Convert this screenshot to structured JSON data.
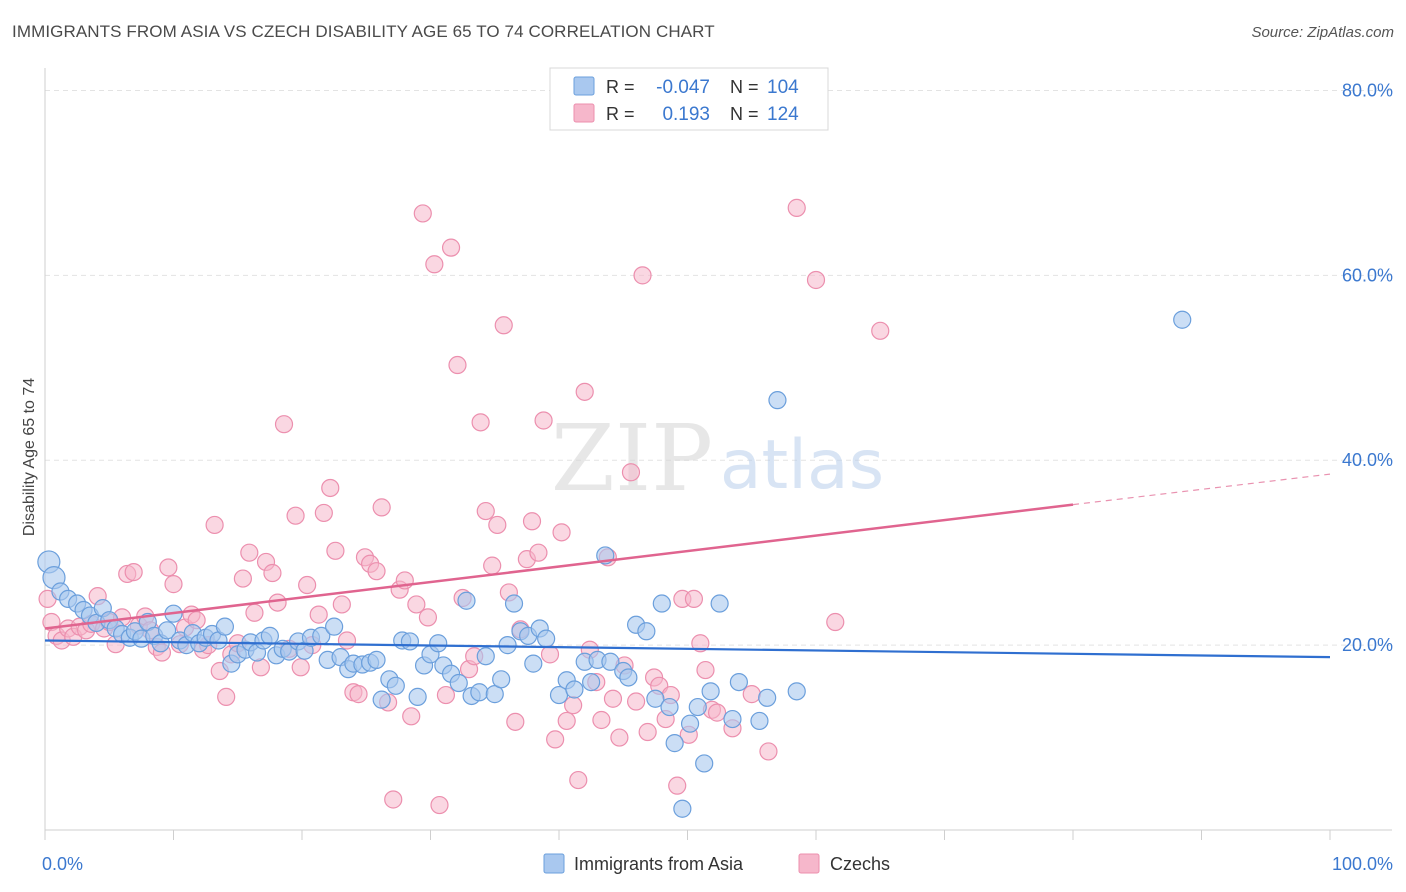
{
  "header": {
    "title": "IMMIGRANTS FROM ASIA VS CZECH DISABILITY AGE 65 TO 74 CORRELATION CHART",
    "source": "Source: ZipAtlas.com"
  },
  "watermark": {
    "zip": "ZIP",
    "atlas": "atlas"
  },
  "legend_top": {
    "rows": [
      {
        "r_label": "R =",
        "r_value": "-0.047",
        "n_label": "N =",
        "n_value": "104"
      },
      {
        "r_label": "R =",
        "r_value": "0.193",
        "n_label": "N =",
        "n_value": "124"
      }
    ]
  },
  "legend_bottom": {
    "items": [
      "Immigrants from Asia",
      "Czechs"
    ]
  },
  "colors": {
    "asia_fill": "#a9c8ef",
    "asia_stroke": "#6b9fdc",
    "asia_line": "#2f6fd0",
    "czech_fill": "#f6b7cb",
    "czech_stroke": "#ec8fae",
    "czech_line": "#e0648f",
    "tick_label": "#3b78cf",
    "grid": "#e3e3e3"
  },
  "chart_data": {
    "type": "scatter",
    "title": "IMMIGRANTS FROM ASIA VS CZECH DISABILITY AGE 65 TO 74 CORRELATION CHART",
    "xlabel": "",
    "ylabel": "Disability Age 65 to 74",
    "xlim": [
      0,
      100
    ],
    "ylim": [
      0,
      82
    ],
    "x_tick_labels": [
      "0.0%",
      "100.0%"
    ],
    "y_ticks": [
      20,
      40,
      60,
      80
    ],
    "y_tick_labels": [
      "20.0%",
      "40.0%",
      "60.0%",
      "80.0%"
    ],
    "grid": true,
    "legend_position": "top-center",
    "series": [
      {
        "name": "Immigrants from Asia",
        "r": -0.047,
        "n": 104,
        "trend": {
          "x0": 0,
          "y0": 20.5,
          "x1": 100,
          "y1": 18.7
        },
        "points": [
          [
            0.3,
            29.0
          ],
          [
            0.7,
            27.3
          ],
          [
            1.2,
            25.8
          ],
          [
            1.8,
            25.0
          ],
          [
            2.5,
            24.5
          ],
          [
            3.0,
            23.8
          ],
          [
            3.5,
            23.2
          ],
          [
            4.0,
            22.4
          ],
          [
            4.5,
            24.0
          ],
          [
            5.0,
            22.7
          ],
          [
            5.5,
            21.8
          ],
          [
            6.0,
            21.2
          ],
          [
            6.6,
            20.8
          ],
          [
            7.0,
            21.5
          ],
          [
            7.5,
            20.7
          ],
          [
            8.0,
            22.5
          ],
          [
            8.5,
            21.0
          ],
          [
            9.0,
            20.2
          ],
          [
            9.5,
            21.6
          ],
          [
            10.0,
            23.4
          ],
          [
            10.5,
            20.5
          ],
          [
            11.0,
            20.0
          ],
          [
            11.5,
            21.3
          ],
          [
            12.0,
            20.2
          ],
          [
            12.5,
            20.8
          ],
          [
            13.0,
            21.2
          ],
          [
            13.5,
            20.5
          ],
          [
            14.0,
            22.0
          ],
          [
            14.5,
            18.0
          ],
          [
            15.0,
            19.0
          ],
          [
            15.6,
            19.5
          ],
          [
            16.0,
            20.3
          ],
          [
            16.5,
            19.2
          ],
          [
            17.0,
            20.5
          ],
          [
            17.5,
            21.0
          ],
          [
            18.0,
            18.9
          ],
          [
            18.5,
            19.6
          ],
          [
            19.0,
            19.3
          ],
          [
            19.7,
            20.4
          ],
          [
            20.2,
            19.4
          ],
          [
            20.7,
            20.8
          ],
          [
            21.5,
            21.0
          ],
          [
            22.0,
            18.4
          ],
          [
            22.5,
            22.0
          ],
          [
            23.0,
            18.7
          ],
          [
            23.6,
            17.4
          ],
          [
            24.0,
            18.0
          ],
          [
            24.7,
            17.9
          ],
          [
            25.3,
            18.1
          ],
          [
            25.8,
            18.4
          ],
          [
            26.2,
            14.1
          ],
          [
            26.8,
            16.3
          ],
          [
            27.3,
            15.6
          ],
          [
            27.8,
            20.5
          ],
          [
            28.4,
            20.4
          ],
          [
            29.0,
            14.4
          ],
          [
            29.5,
            17.8
          ],
          [
            30.0,
            19.0
          ],
          [
            30.6,
            20.2
          ],
          [
            31.0,
            17.8
          ],
          [
            31.6,
            16.9
          ],
          [
            32.2,
            15.9
          ],
          [
            32.8,
            24.8
          ],
          [
            33.2,
            14.5
          ],
          [
            33.8,
            14.9
          ],
          [
            34.3,
            18.8
          ],
          [
            35.0,
            14.7
          ],
          [
            35.5,
            16.3
          ],
          [
            36.0,
            20.0
          ],
          [
            36.5,
            24.5
          ],
          [
            37.0,
            21.5
          ],
          [
            37.6,
            21.0
          ],
          [
            38.0,
            18.0
          ],
          [
            38.5,
            21.8
          ],
          [
            39.0,
            20.7
          ],
          [
            40.0,
            14.6
          ],
          [
            40.6,
            16.2
          ],
          [
            41.2,
            15.2
          ],
          [
            42.0,
            18.2
          ],
          [
            42.5,
            16.0
          ],
          [
            43.0,
            18.4
          ],
          [
            43.6,
            29.7
          ],
          [
            44.0,
            18.2
          ],
          [
            45.0,
            17.2
          ],
          [
            45.4,
            16.5
          ],
          [
            46.0,
            22.2
          ],
          [
            46.8,
            21.5
          ],
          [
            47.5,
            14.2
          ],
          [
            48.0,
            24.5
          ],
          [
            48.6,
            13.3
          ],
          [
            49.0,
            9.4
          ],
          [
            49.6,
            2.3
          ],
          [
            50.2,
            11.5
          ],
          [
            50.8,
            13.3
          ],
          [
            51.3,
            7.2
          ],
          [
            51.8,
            15.0
          ],
          [
            52.5,
            24.5
          ],
          [
            53.5,
            12.0
          ],
          [
            54.0,
            16.0
          ],
          [
            55.6,
            11.8
          ],
          [
            56.2,
            14.3
          ],
          [
            57.0,
            46.5
          ],
          [
            58.5,
            15.0
          ],
          [
            88.5,
            55.2
          ]
        ]
      },
      {
        "name": "Czechs",
        "r": 0.193,
        "n": 124,
        "trend": {
          "x0": 0,
          "y0": 21.8,
          "x1": 80,
          "y1": 35.2,
          "dashed_to_x": 100,
          "dashed_to_y": 38.5
        },
        "points": [
          [
            0.2,
            25.0
          ],
          [
            0.5,
            22.5
          ],
          [
            0.9,
            21.0
          ],
          [
            1.3,
            20.5
          ],
          [
            1.8,
            21.8
          ],
          [
            2.2,
            20.9
          ],
          [
            2.7,
            22.0
          ],
          [
            3.2,
            21.6
          ],
          [
            3.6,
            22.3
          ],
          [
            4.1,
            25.3
          ],
          [
            4.6,
            21.8
          ],
          [
            5.0,
            22.5
          ],
          [
            5.5,
            20.1
          ],
          [
            6.0,
            23.0
          ],
          [
            6.4,
            27.7
          ],
          [
            6.9,
            27.9
          ],
          [
            7.3,
            22.1
          ],
          [
            7.8,
            23.1
          ],
          [
            8.2,
            21.6
          ],
          [
            8.7,
            19.8
          ],
          [
            9.1,
            19.2
          ],
          [
            9.6,
            28.4
          ],
          [
            10.0,
            26.6
          ],
          [
            10.5,
            20.1
          ],
          [
            10.9,
            21.9
          ],
          [
            11.4,
            23.3
          ],
          [
            11.8,
            22.7
          ],
          [
            12.3,
            19.5
          ],
          [
            12.7,
            20.0
          ],
          [
            13.2,
            33.0
          ],
          [
            13.6,
            17.2
          ],
          [
            14.1,
            14.4
          ],
          [
            14.5,
            19.0
          ],
          [
            15.0,
            20.2
          ],
          [
            15.4,
            27.2
          ],
          [
            15.9,
            30.0
          ],
          [
            16.3,
            23.5
          ],
          [
            16.8,
            17.6
          ],
          [
            17.2,
            29.0
          ],
          [
            17.7,
            27.8
          ],
          [
            18.1,
            24.6
          ],
          [
            18.6,
            43.9
          ],
          [
            19.0,
            19.6
          ],
          [
            19.5,
            34.0
          ],
          [
            19.9,
            17.6
          ],
          [
            20.4,
            26.5
          ],
          [
            20.8,
            20.0
          ],
          [
            21.3,
            23.3
          ],
          [
            21.7,
            34.3
          ],
          [
            22.2,
            37.0
          ],
          [
            22.6,
            30.2
          ],
          [
            23.1,
            24.4
          ],
          [
            23.5,
            20.5
          ],
          [
            24.0,
            14.9
          ],
          [
            24.4,
            14.7
          ],
          [
            24.9,
            29.5
          ],
          [
            25.3,
            28.8
          ],
          [
            25.8,
            28.0
          ],
          [
            26.2,
            34.9
          ],
          [
            26.7,
            13.8
          ],
          [
            27.1,
            3.3
          ],
          [
            27.6,
            26.0
          ],
          [
            28.0,
            27.0
          ],
          [
            28.5,
            12.3
          ],
          [
            28.9,
            24.4
          ],
          [
            29.4,
            66.7
          ],
          [
            29.8,
            23.0
          ],
          [
            30.3,
            61.2
          ],
          [
            30.7,
            2.7
          ],
          [
            31.2,
            14.6
          ],
          [
            31.6,
            63.0
          ],
          [
            32.1,
            50.3
          ],
          [
            32.5,
            25.1
          ],
          [
            33.0,
            17.4
          ],
          [
            33.4,
            18.8
          ],
          [
            33.9,
            44.1
          ],
          [
            34.3,
            34.5
          ],
          [
            34.8,
            28.6
          ],
          [
            35.2,
            33.0
          ],
          [
            35.7,
            54.6
          ],
          [
            36.1,
            25.7
          ],
          [
            36.6,
            11.7
          ],
          [
            37.0,
            21.7
          ],
          [
            37.5,
            29.3
          ],
          [
            37.9,
            33.4
          ],
          [
            38.4,
            30.0
          ],
          [
            38.8,
            44.3
          ],
          [
            39.3,
            19.0
          ],
          [
            39.7,
            9.8
          ],
          [
            40.2,
            32.2
          ],
          [
            40.6,
            11.8
          ],
          [
            41.1,
            13.5
          ],
          [
            41.5,
            5.4
          ],
          [
            42.0,
            47.4
          ],
          [
            42.4,
            19.5
          ],
          [
            42.9,
            16.0
          ],
          [
            43.3,
            11.9
          ],
          [
            43.8,
            29.5
          ],
          [
            44.2,
            14.2
          ],
          [
            44.7,
            10.0
          ],
          [
            45.1,
            17.8
          ],
          [
            45.6,
            38.7
          ],
          [
            46.0,
            13.9
          ],
          [
            46.5,
            60.0
          ],
          [
            46.9,
            10.6
          ],
          [
            47.4,
            16.5
          ],
          [
            47.8,
            15.6
          ],
          [
            48.3,
            12.0
          ],
          [
            48.7,
            14.6
          ],
          [
            49.2,
            4.8
          ],
          [
            49.6,
            25.0
          ],
          [
            50.1,
            10.3
          ],
          [
            50.5,
            25.0
          ],
          [
            51.0,
            20.2
          ],
          [
            51.4,
            17.3
          ],
          [
            51.9,
            13.0
          ],
          [
            52.3,
            12.7
          ],
          [
            53.5,
            11.0
          ],
          [
            55.0,
            14.7
          ],
          [
            56.3,
            8.5
          ],
          [
            58.5,
            67.3
          ],
          [
            60.0,
            59.5
          ],
          [
            61.5,
            22.5
          ],
          [
            65.0,
            54.0
          ]
        ]
      }
    ]
  }
}
